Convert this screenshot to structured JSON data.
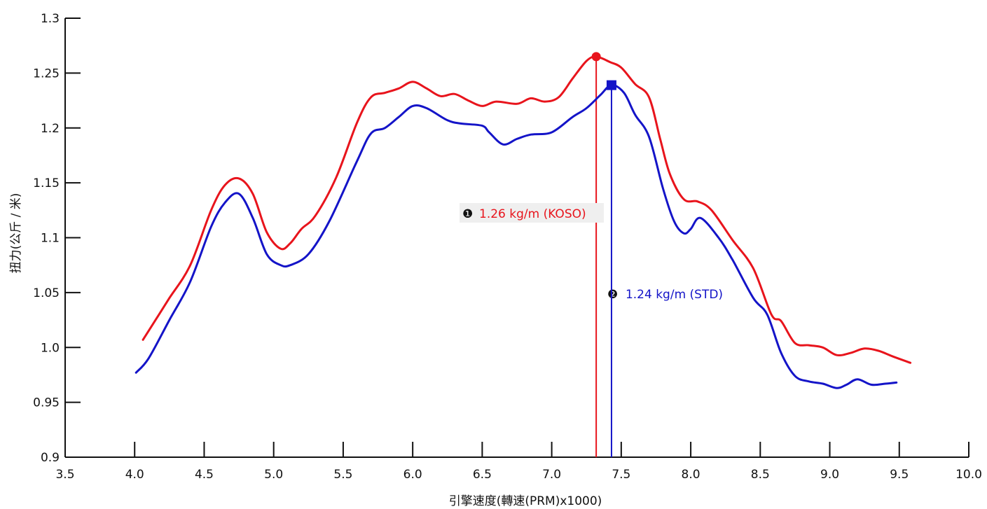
{
  "chart_data": {
    "type": "line",
    "title": "",
    "xlabel": "引擎速度(轉速(PRM)x1000)",
    "ylabel": "扭力(公斤 / 米)",
    "xlim": [
      3.5,
      10.0
    ],
    "ylim": [
      0.9,
      1.3
    ],
    "x_ticks": [
      "3.5",
      "4.0",
      "4.5",
      "5.0",
      "5.5",
      "6.0",
      "6.5",
      "7.0",
      "7.5",
      "8.0",
      "8.5",
      "9.0",
      "9.5",
      "10.0"
    ],
    "y_ticks": [
      "0.9",
      "0.95",
      "1.0",
      "1.05",
      "1.1",
      "1.15",
      "1.2",
      "1.25",
      "1.3"
    ],
    "grid": false,
    "series": [
      {
        "name": "KOSO",
        "color": "#e8141c",
        "points": [
          [
            4.06,
            1.007
          ],
          [
            4.15,
            1.025
          ],
          [
            4.25,
            1.045
          ],
          [
            4.4,
            1.075
          ],
          [
            4.55,
            1.125
          ],
          [
            4.65,
            1.148
          ],
          [
            4.75,
            1.154
          ],
          [
            4.85,
            1.14
          ],
          [
            4.95,
            1.105
          ],
          [
            5.05,
            1.09
          ],
          [
            5.12,
            1.095
          ],
          [
            5.2,
            1.108
          ],
          [
            5.3,
            1.12
          ],
          [
            5.45,
            1.155
          ],
          [
            5.6,
            1.205
          ],
          [
            5.7,
            1.228
          ],
          [
            5.8,
            1.232
          ],
          [
            5.9,
            1.236
          ],
          [
            6.0,
            1.242
          ],
          [
            6.1,
            1.236
          ],
          [
            6.2,
            1.229
          ],
          [
            6.3,
            1.231
          ],
          [
            6.4,
            1.225
          ],
          [
            6.5,
            1.22
          ],
          [
            6.6,
            1.224
          ],
          [
            6.75,
            1.222
          ],
          [
            6.85,
            1.227
          ],
          [
            6.95,
            1.224
          ],
          [
            7.05,
            1.228
          ],
          [
            7.15,
            1.245
          ],
          [
            7.25,
            1.261
          ],
          [
            7.32,
            1.265
          ],
          [
            7.42,
            1.26
          ],
          [
            7.5,
            1.255
          ],
          [
            7.6,
            1.24
          ],
          [
            7.7,
            1.228
          ],
          [
            7.78,
            1.19
          ],
          [
            7.85,
            1.158
          ],
          [
            7.95,
            1.135
          ],
          [
            8.05,
            1.133
          ],
          [
            8.15,
            1.125
          ],
          [
            8.3,
            1.098
          ],
          [
            8.45,
            1.072
          ],
          [
            8.58,
            1.03
          ],
          [
            8.65,
            1.024
          ],
          [
            8.75,
            1.004
          ],
          [
            8.85,
            1.002
          ],
          [
            8.95,
            1.0
          ],
          [
            9.05,
            0.993
          ],
          [
            9.15,
            0.995
          ],
          [
            9.25,
            0.999
          ],
          [
            9.35,
            0.997
          ],
          [
            9.45,
            0.992
          ],
          [
            9.58,
            0.986
          ]
        ],
        "peak": {
          "x": 7.32,
          "y": 1.265,
          "label": "1.26 kg/m (KOSO)",
          "marker": "❶"
        }
      },
      {
        "name": "STD",
        "color": "#1414c8",
        "points": [
          [
            4.01,
            0.977
          ],
          [
            4.1,
            0.99
          ],
          [
            4.25,
            1.025
          ],
          [
            4.4,
            1.06
          ],
          [
            4.55,
            1.11
          ],
          [
            4.65,
            1.132
          ],
          [
            4.75,
            1.14
          ],
          [
            4.85,
            1.118
          ],
          [
            4.95,
            1.085
          ],
          [
            5.05,
            1.075
          ],
          [
            5.12,
            1.075
          ],
          [
            5.25,
            1.085
          ],
          [
            5.4,
            1.115
          ],
          [
            5.6,
            1.17
          ],
          [
            5.7,
            1.195
          ],
          [
            5.8,
            1.2
          ],
          [
            5.9,
            1.21
          ],
          [
            6.0,
            1.22
          ],
          [
            6.1,
            1.218
          ],
          [
            6.25,
            1.207
          ],
          [
            6.35,
            1.204
          ],
          [
            6.5,
            1.202
          ],
          [
            6.55,
            1.196
          ],
          [
            6.65,
            1.185
          ],
          [
            6.75,
            1.19
          ],
          [
            6.85,
            1.194
          ],
          [
            7.0,
            1.196
          ],
          [
            7.15,
            1.21
          ],
          [
            7.25,
            1.218
          ],
          [
            7.35,
            1.23
          ],
          [
            7.43,
            1.239
          ],
          [
            7.52,
            1.232
          ],
          [
            7.6,
            1.212
          ],
          [
            7.7,
            1.192
          ],
          [
            7.8,
            1.145
          ],
          [
            7.88,
            1.115
          ],
          [
            7.95,
            1.104
          ],
          [
            8.0,
            1.108
          ],
          [
            8.07,
            1.118
          ],
          [
            8.2,
            1.1
          ],
          [
            8.3,
            1.08
          ],
          [
            8.45,
            1.045
          ],
          [
            8.55,
            1.03
          ],
          [
            8.65,
            0.995
          ],
          [
            8.75,
            0.974
          ],
          [
            8.85,
            0.969
          ],
          [
            8.95,
            0.967
          ],
          [
            9.05,
            0.963
          ],
          [
            9.12,
            0.966
          ],
          [
            9.2,
            0.971
          ],
          [
            9.3,
            0.966
          ],
          [
            9.4,
            0.967
          ],
          [
            9.48,
            0.968
          ]
        ],
        "peak": {
          "x": 7.43,
          "y": 1.239,
          "label": "1.24 kg/m (STD)",
          "marker": "❷"
        }
      }
    ]
  }
}
